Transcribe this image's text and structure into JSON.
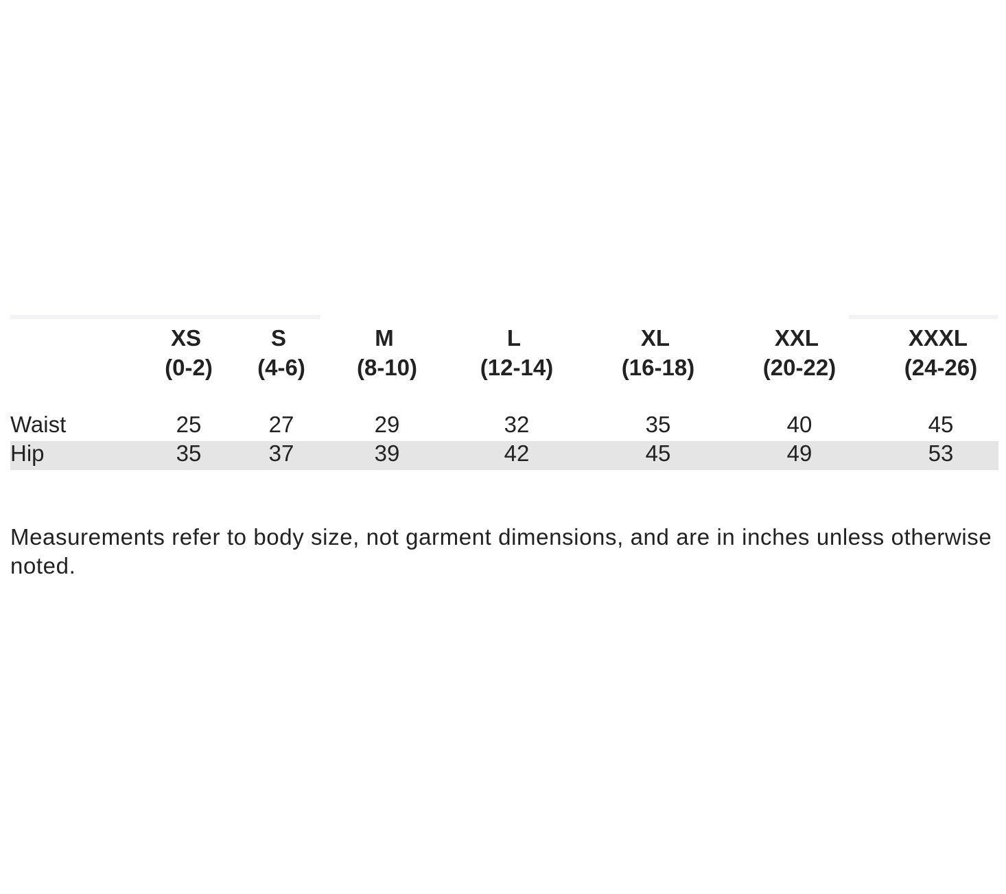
{
  "table": {
    "columns": [
      {
        "size": "XS",
        "range": "(0-2)"
      },
      {
        "size": "S",
        "range": "(4-6)"
      },
      {
        "size": "M",
        "range": "(8-10)"
      },
      {
        "size": "L",
        "range": "(12-14)"
      },
      {
        "size": "XL",
        "range": "(16-18)"
      },
      {
        "size": "XXL",
        "range": "(20-22)"
      },
      {
        "size": "XXXL",
        "range": "(24-26)"
      }
    ],
    "rows": [
      {
        "label": "Waist",
        "values": [
          25,
          27,
          29,
          32,
          35,
          40,
          45
        ]
      },
      {
        "label": "Hip",
        "values": [
          35,
          37,
          39,
          42,
          45,
          49,
          53
        ]
      }
    ]
  },
  "note": "Measurements refer to body size, not garment dimensions, and are in inches unless otherwise noted."
}
